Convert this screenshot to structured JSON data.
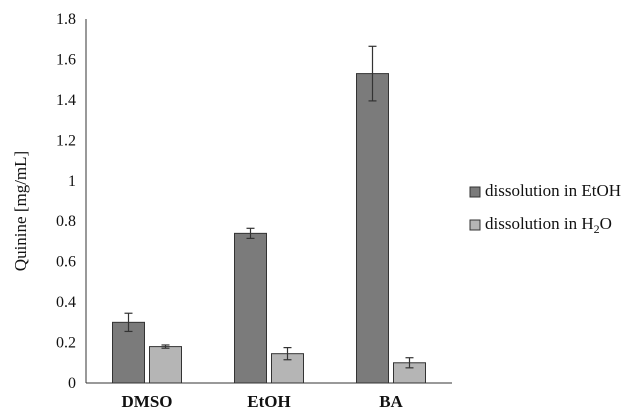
{
  "chart_data": {
    "type": "bar",
    "categories": [
      "DMSO",
      "EtOH",
      "BA"
    ],
    "ylabel": "Quinine [mg/mL]",
    "xlabel": "",
    "ylim": [
      0,
      1.8
    ],
    "yticks": [
      0,
      0.2,
      0.4,
      0.6,
      0.8,
      1,
      1.2,
      1.4,
      1.6,
      1.8
    ],
    "ytick_labels": [
      "0",
      "0.2",
      "0.4",
      "0.6",
      "0.8",
      "1",
      "1.2",
      "1.4",
      "1.6",
      "1.8"
    ],
    "grid": false,
    "legend_position": "right",
    "series": [
      {
        "name": "dissolution in EtOH",
        "legend_main": "dissolution in EtOH",
        "legend_sub": "",
        "legend_tail": "",
        "color": "#7b7b7b",
        "values": [
          0.3,
          0.74,
          1.53
        ],
        "errors": [
          0.045,
          0.025,
          0.135
        ]
      },
      {
        "name": "dissolution in H2O",
        "legend_main": "dissolution in H",
        "legend_sub": "2",
        "legend_tail": "O",
        "color": "#b5b5b5",
        "values": [
          0.18,
          0.145,
          0.1
        ],
        "errors": [
          0.008,
          0.03,
          0.025
        ]
      }
    ]
  }
}
